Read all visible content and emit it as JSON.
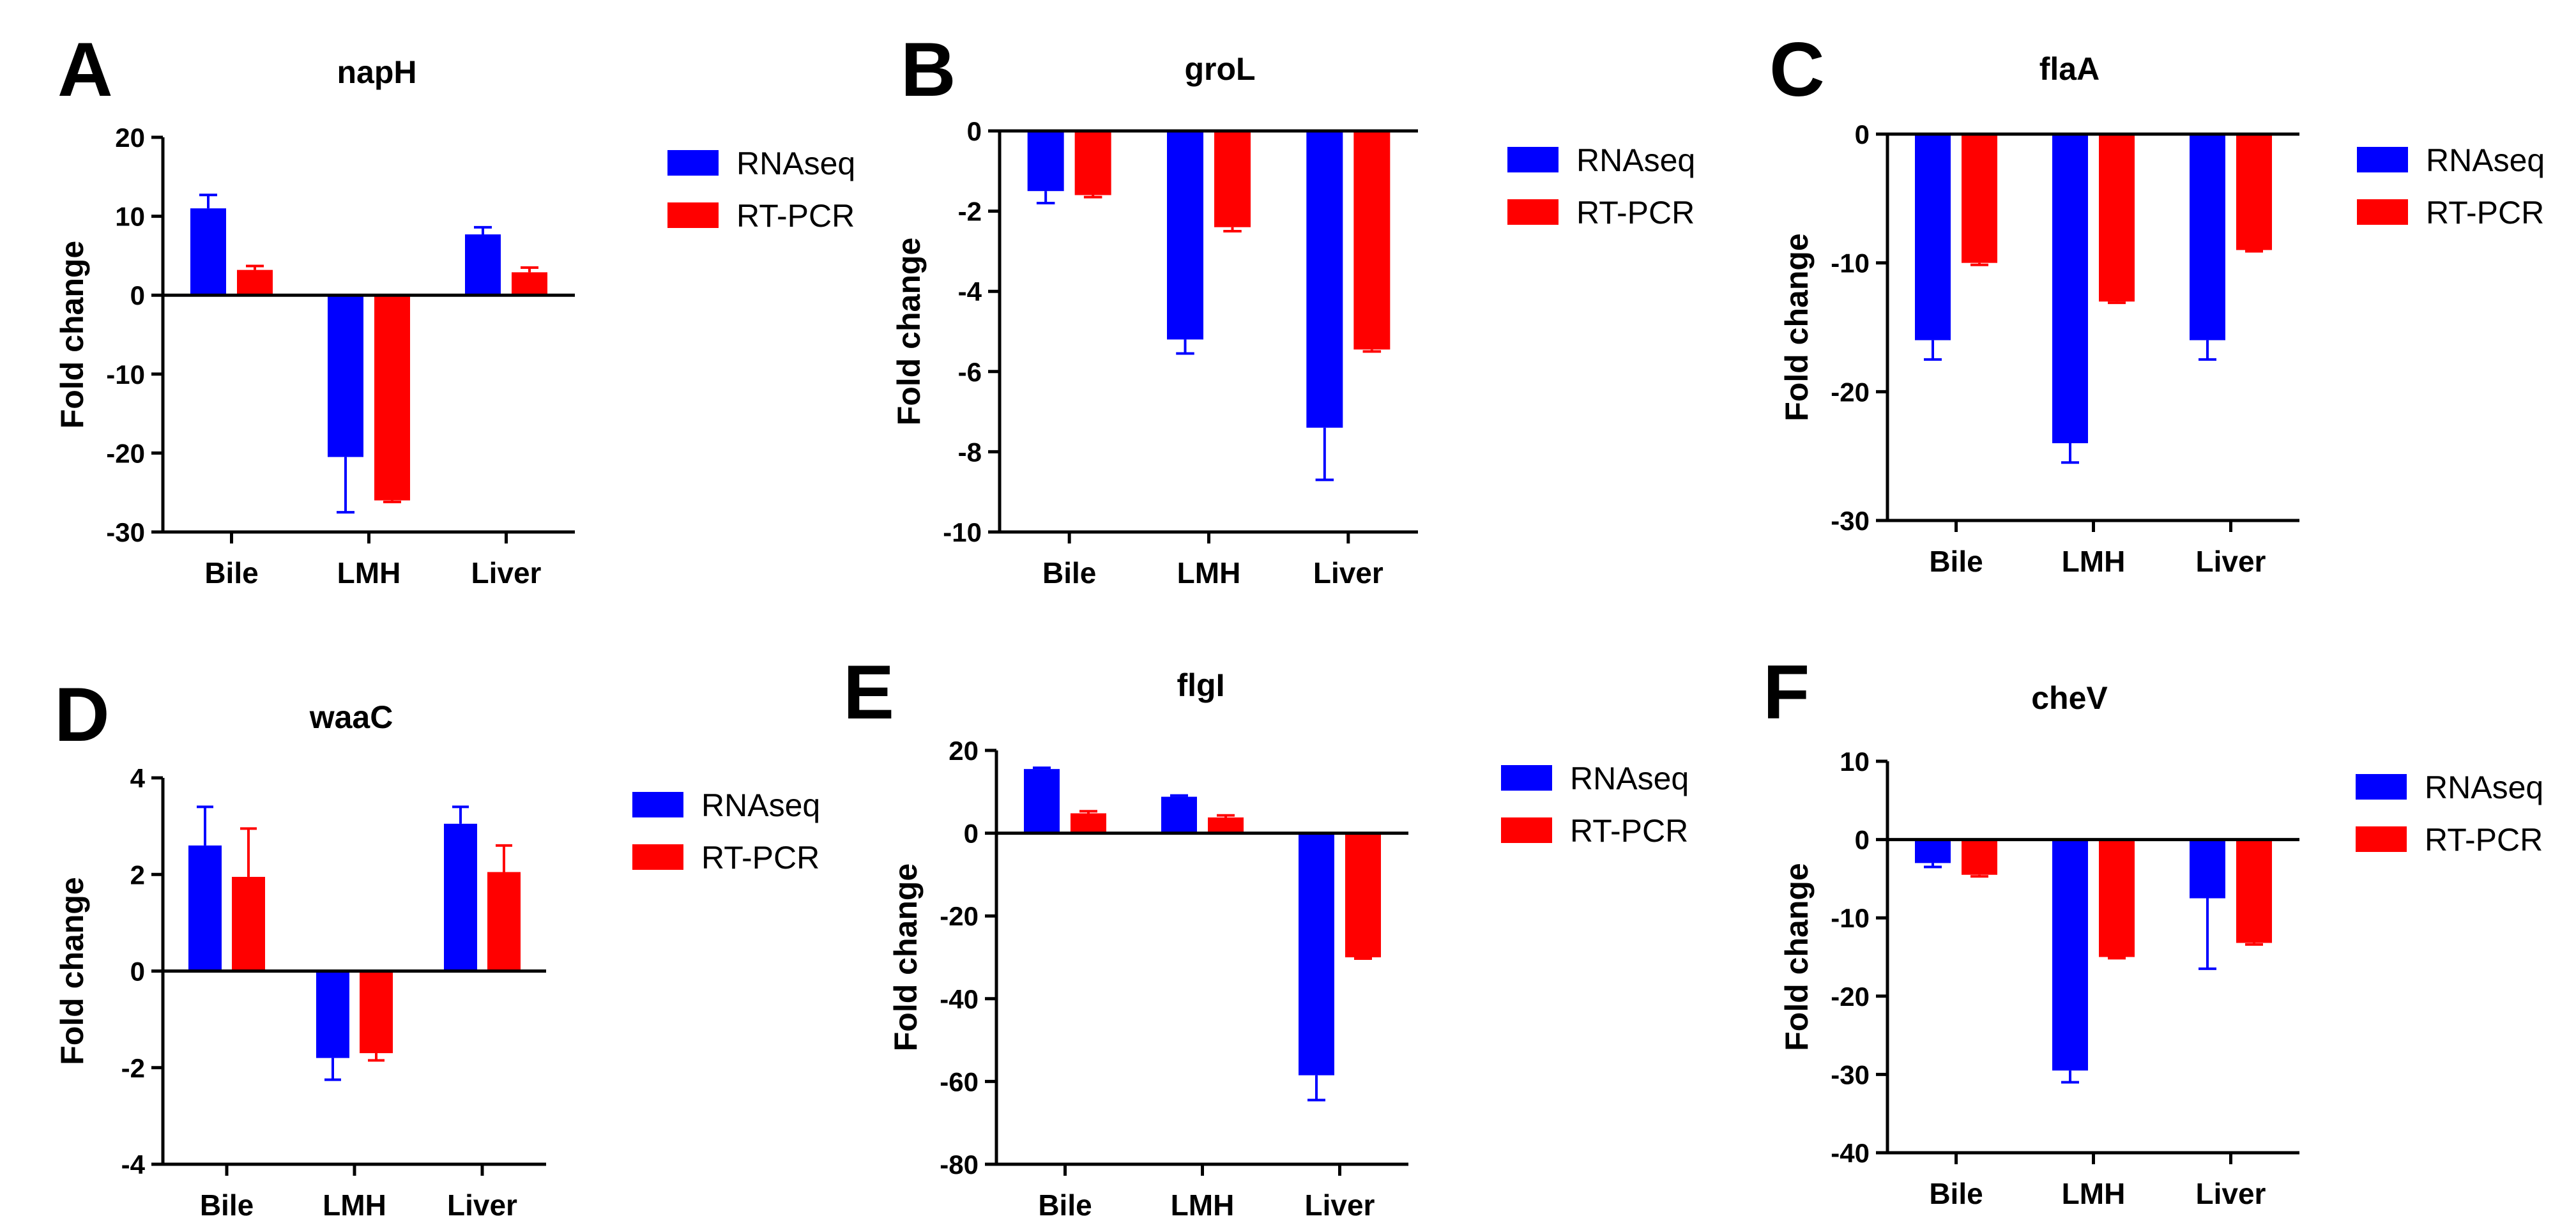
{
  "colors": {
    "rnaseq": "#0000FF",
    "rtpcr": "#FF0000",
    "axis": "#000000"
  },
  "chart_data": [
    {
      "panel": "A",
      "type": "bar",
      "title": "napH",
      "ylabel": "Fold change",
      "xlabel": "",
      "categories": [
        "Bile",
        "LMH",
        "Liver"
      ],
      "ylim": [
        -30,
        20
      ],
      "yticks": [
        20,
        10,
        0,
        -10,
        -20,
        -30
      ],
      "legend_position": "right",
      "series": [
        {
          "name": "RNAseq",
          "values": [
            11,
            -20.5,
            7.7
          ],
          "errors": [
            1.7,
            7,
            0.9
          ]
        },
        {
          "name": "RT-PCR",
          "values": [
            3.2,
            -26,
            2.9
          ],
          "errors": [
            0.5,
            0.2,
            0.6
          ]
        }
      ]
    },
    {
      "panel": "B",
      "type": "bar",
      "title": "groL",
      "ylabel": "Fold change",
      "xlabel": "",
      "categories": [
        "Bile",
        "LMH",
        "Liver"
      ],
      "ylim": [
        -10,
        0
      ],
      "yticks": [
        0,
        -2,
        -4,
        -6,
        -8,
        -10
      ],
      "legend_position": "right",
      "series": [
        {
          "name": "RNAseq",
          "values": [
            -1.5,
            -5.2,
            -7.4
          ],
          "errors": [
            0.3,
            0.35,
            1.3
          ]
        },
        {
          "name": "RT-PCR",
          "values": [
            -1.6,
            -2.4,
            -5.45
          ],
          "errors": [
            0.05,
            0.1,
            0.05
          ]
        }
      ]
    },
    {
      "panel": "C",
      "type": "bar",
      "title": "flaA",
      "ylabel": "Fold change",
      "xlabel": "",
      "categories": [
        "Bile",
        "LMH",
        "Liver"
      ],
      "ylim": [
        -30,
        0
      ],
      "yticks": [
        0,
        -10,
        -20,
        -30
      ],
      "legend_position": "right",
      "series": [
        {
          "name": "RNAseq",
          "values": [
            -16,
            -24,
            -16
          ],
          "errors": [
            1.5,
            1.5,
            1.5
          ]
        },
        {
          "name": "RT-PCR",
          "values": [
            -10,
            -13,
            -9
          ],
          "errors": [
            0.15,
            0.1,
            0.1
          ]
        }
      ]
    },
    {
      "panel": "D",
      "type": "bar",
      "title": "waaC",
      "ylabel": "Fold change",
      "xlabel": "",
      "categories": [
        "Bile",
        "LMH",
        "Liver"
      ],
      "ylim": [
        -4,
        4
      ],
      "yticks": [
        4,
        2,
        0,
        -2,
        -4
      ],
      "legend_position": "right",
      "series": [
        {
          "name": "RNAseq",
          "values": [
            2.6,
            -1.8,
            3.05
          ],
          "errors": [
            0.8,
            0.45,
            0.35
          ]
        },
        {
          "name": "RT-PCR",
          "values": [
            1.95,
            -1.7,
            2.05
          ],
          "errors": [
            1.0,
            0.15,
            0.55
          ]
        }
      ]
    },
    {
      "panel": "E",
      "type": "bar",
      "title": "flgI",
      "ylabel": "Fold change",
      "xlabel": "",
      "categories": [
        "Bile",
        "LMH",
        "Liver"
      ],
      "ylim": [
        -80,
        20
      ],
      "yticks": [
        20,
        0,
        -20,
        -40,
        -60,
        -80
      ],
      "legend_position": "right",
      "series": [
        {
          "name": "RNAseq",
          "values": [
            15.5,
            8.8,
            -58.5
          ],
          "errors": [
            0.3,
            0.3,
            6
          ]
        },
        {
          "name": "RT-PCR",
          "values": [
            4.8,
            3.8,
            -30
          ],
          "errors": [
            0.5,
            0.5,
            0.3
          ]
        }
      ]
    },
    {
      "panel": "F",
      "type": "bar",
      "title": "cheV",
      "ylabel": "Fold change",
      "xlabel": "",
      "categories": [
        "Bile",
        "LMH",
        "Liver"
      ],
      "ylim": [
        -40,
        10
      ],
      "yticks": [
        10,
        0,
        -10,
        -20,
        -30,
        -40
      ],
      "legend_position": "right",
      "series": [
        {
          "name": "RNAseq",
          "values": [
            -3,
            -29.5,
            -7.5
          ],
          "errors": [
            0.5,
            1.5,
            9
          ]
        },
        {
          "name": "RT-PCR",
          "values": [
            -4.5,
            -15,
            -13.2
          ],
          "errors": [
            0.2,
            0.15,
            0.2
          ]
        }
      ]
    }
  ]
}
